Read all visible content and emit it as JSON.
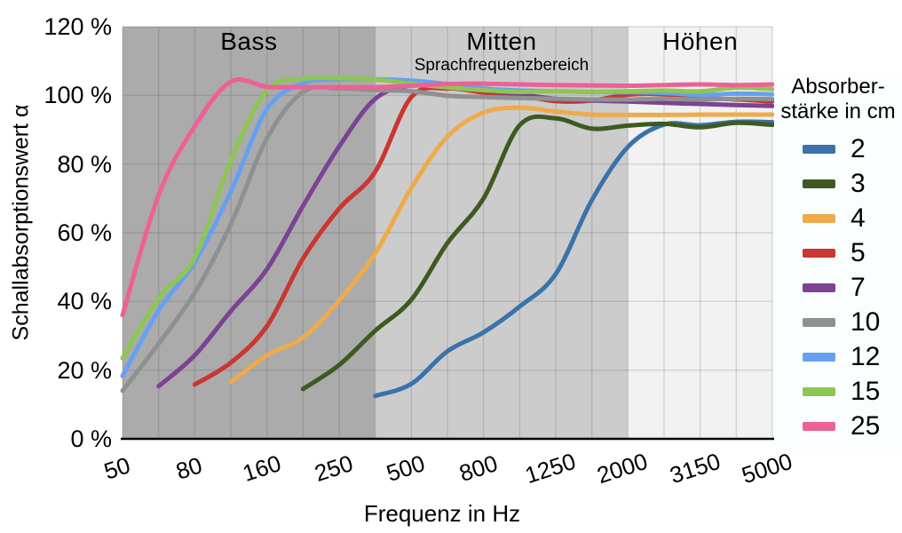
{
  "chart_data": {
    "type": "line",
    "title": "",
    "x_axis": {
      "label": "Frequenz in Hz",
      "tick_labels": [
        "50",
        "80",
        "160",
        "250",
        "500",
        "800",
        "1250",
        "2000",
        "3150",
        "5000"
      ],
      "gridline_count": 19,
      "tick_gridline_indices": [
        0,
        2,
        4,
        6,
        8,
        10,
        12,
        14,
        16,
        18
      ],
      "scale_note": "evenly spaced third-octave style bands; labels on every second gridline"
    },
    "y_axis": {
      "label": "Schallabsorptionswert α",
      "tick_labels": [
        "0 %",
        "20 %",
        "40 %",
        "60 %",
        "80 %",
        "100 %",
        "120 %"
      ],
      "min": 0,
      "max": 120,
      "step": 20,
      "unit": "%"
    },
    "regions": [
      {
        "name": "Bass",
        "sub": "",
        "from_index": 0,
        "to_index": 7,
        "color": "#ababab"
      },
      {
        "name": "Mitten",
        "sub": "Sprachfrequenzbereich",
        "from_index": 7,
        "to_index": 14,
        "color": "#cccccc"
      },
      {
        "name": "Höhen",
        "sub": "",
        "from_index": 14,
        "to_index": 18,
        "color": "#f2f2f2"
      }
    ],
    "grid": {
      "color": "rgba(70,70,70,0.18)",
      "axis_line_color": "#000000"
    },
    "series": [
      {
        "name": "2",
        "color": "#3a73a9",
        "values": [
          null,
          null,
          null,
          null,
          null,
          null,
          null,
          12.5,
          16,
          25.5,
          31,
          38.5,
          48,
          69.5,
          85,
          91.5,
          91.3,
          92.3,
          92.2
        ]
      },
      {
        "name": "3",
        "color": "#3e5a21",
        "values": [
          null,
          null,
          null,
          null,
          null,
          14.5,
          21.5,
          31.5,
          40.5,
          57,
          70,
          91.3,
          93.3,
          90.3,
          91.2,
          91.7,
          90.7,
          92,
          91.4
        ]
      },
      {
        "name": "4",
        "color": "#edab4b",
        "values": [
          null,
          null,
          null,
          16.5,
          24.3,
          29.5,
          40.3,
          54,
          73,
          88,
          95,
          96.4,
          95.3,
          94.4,
          94.3,
          94.3,
          94.4,
          94.4,
          94.4
        ]
      },
      {
        "name": "5",
        "color": "#ca3632",
        "values": [
          null,
          null,
          15.8,
          22.2,
          32.8,
          52.5,
          67,
          77.8,
          99.5,
          102,
          100.8,
          100,
          98.3,
          98.5,
          100.2,
          100.3,
          99.2,
          98.8,
          98.2
        ]
      },
      {
        "name": "7",
        "color": "#7b4391",
        "values": [
          null,
          15.3,
          24.3,
          37.2,
          49.4,
          67.8,
          85.1,
          99,
          102.9,
          102.9,
          101.5,
          100.3,
          99,
          98.5,
          98.2,
          97.8,
          97.5,
          97.2,
          96.9
        ]
      },
      {
        "name": "10",
        "color": "#8f9191",
        "values": [
          14,
          27.7,
          42.5,
          62.5,
          87.5,
          101,
          102,
          101.5,
          101.2,
          99.9,
          99.5,
          99.2,
          99,
          98.8,
          98.8,
          99,
          98.8,
          99,
          98.9
        ]
      },
      {
        "name": "12",
        "color": "#66a0f1",
        "values": [
          18.3,
          37.4,
          51.5,
          72,
          96,
          103.5,
          104.6,
          104.7,
          104.3,
          103.3,
          102,
          101.4,
          101.2,
          101,
          100.9,
          100.7,
          100.1,
          100.5,
          100.3
        ]
      },
      {
        "name": "15",
        "color": "#8dc653",
        "values": [
          23.5,
          41,
          52.7,
          81,
          101.5,
          104.8,
          105,
          104.6,
          103.4,
          102.3,
          101.5,
          101,
          101.2,
          101,
          101.2,
          101.4,
          101.2,
          102.2,
          101.8
        ]
      },
      {
        "name": "25",
        "color": "#ed6196",
        "values": [
          36,
          71,
          91,
          104,
          102.5,
          102.4,
          102.4,
          102.4,
          102.8,
          103.3,
          103.4,
          103.2,
          103,
          102.9,
          102.8,
          103,
          103.2,
          103,
          103.2
        ]
      }
    ],
    "legend_position": "right"
  },
  "legend": {
    "title_lines": [
      "Absorber-",
      "stärke in cm"
    ],
    "entries": [
      "2",
      "3",
      "4",
      "5",
      "7",
      "10",
      "12",
      "15",
      "25"
    ]
  }
}
